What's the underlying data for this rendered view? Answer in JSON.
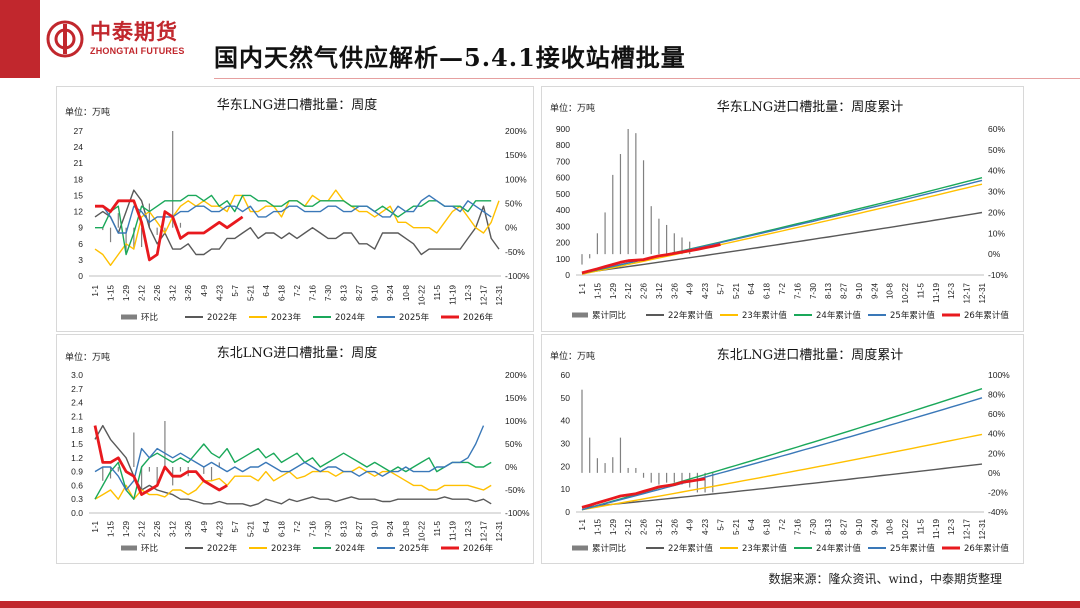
{
  "header": {
    "brand_cn": "中泰期货",
    "brand_en": "ZHONGTAI FUTURES",
    "title": "国内天然气供应解析—5.4.1接收站槽批量"
  },
  "footer": {
    "source": "数据来源：隆众资讯、wind，中泰期货整理"
  },
  "colors": {
    "brand": "#c1272d",
    "bar": "#808080",
    "s2022": "#595959",
    "s2023": "#ffc000",
    "s2024": "#1aa85a",
    "s2025": "#3a78b8",
    "s2026": "#e8191e"
  },
  "week_ticks": [
    "1-1",
    "1-15",
    "1-29",
    "2-12",
    "2-26",
    "3-12",
    "3-26",
    "4-9",
    "4-23",
    "5-7",
    "5-21",
    "6-4",
    "6-18",
    "7-2",
    "7-16",
    "7-30",
    "8-13",
    "8-27",
    "9-10",
    "9-24",
    "10-8",
    "10-22",
    "11-5",
    "11-19",
    "12-3",
    "12-17",
    "12-31"
  ],
  "chart_data": [
    {
      "id": "east_weekly",
      "type": "line",
      "title": "华东LNG进口槽批量：周度",
      "unit": "单位：万吨",
      "yticks": [
        "27",
        "24",
        "21",
        "18",
        "15",
        "12",
        "9",
        "6",
        "3",
        "0"
      ],
      "ylim": [
        0,
        27
      ],
      "y2ticks": [
        "200%",
        "150%",
        "100%",
        "50%",
        "0%",
        "-50%",
        "-100%"
      ],
      "y2lim": [
        -100,
        200
      ],
      "legend": [
        "环比",
        "2022年",
        "2023年",
        "2024年",
        "2025年",
        "2026年"
      ],
      "bars": [
        null,
        -5,
        -30,
        30,
        -55,
        -45,
        -40,
        50,
        -15,
        -12,
        200,
        10
      ],
      "series": [
        {
          "name": "2022年",
          "values": [
            11,
            12,
            11,
            8,
            12,
            16,
            14,
            9,
            6,
            8,
            5,
            5,
            6,
            4,
            4,
            5,
            5,
            7,
            7,
            8,
            9,
            7,
            8,
            8,
            7,
            8,
            7,
            8,
            9,
            8,
            7,
            7,
            8,
            8,
            6,
            6,
            5,
            8,
            8,
            8,
            7,
            6,
            4,
            5,
            5,
            5,
            5,
            5,
            7,
            9,
            13,
            7,
            5
          ]
        },
        {
          "name": "2023年",
          "values": [
            5,
            4,
            2,
            4,
            6,
            5,
            11,
            12,
            10,
            8,
            11,
            13,
            14,
            13,
            14,
            13,
            13,
            12,
            15,
            15,
            12,
            12,
            13,
            13,
            11,
            14,
            14,
            13,
            15,
            14,
            14,
            16,
            14,
            13,
            12,
            12,
            11,
            12,
            13,
            10,
            10,
            9,
            9,
            9,
            8,
            10,
            12,
            13,
            11,
            9,
            8,
            10,
            14
          ]
        },
        {
          "name": "2024年",
          "values": [
            9,
            9,
            12,
            13,
            4,
            8,
            13,
            12,
            13,
            14,
            14,
            14,
            15,
            15,
            14,
            15,
            13,
            14,
            12,
            15,
            15,
            14,
            14,
            13,
            13,
            14,
            14,
            13,
            13,
            14,
            14,
            14,
            14,
            13,
            13,
            13,
            12,
            13,
            12,
            11,
            12,
            13,
            13,
            14,
            14,
            13,
            13,
            13,
            12,
            14,
            14,
            14
          ]
        },
        {
          "name": "2025年",
          "values": [
            13,
            13,
            11,
            8,
            8,
            13,
            12,
            10,
            11,
            11,
            11,
            12,
            12,
            13,
            13,
            12,
            12,
            13,
            13,
            12,
            13,
            11,
            11,
            12,
            12,
            13,
            13,
            12,
            12,
            12,
            13,
            13,
            12,
            12,
            13,
            13,
            12,
            11,
            11,
            13,
            12,
            12,
            14,
            15,
            14,
            13,
            13,
            12,
            14,
            13,
            12,
            11
          ]
        },
        {
          "name": "2026年",
          "values": [
            13,
            13,
            12,
            14,
            14,
            14,
            10,
            3,
            4,
            12,
            11,
            7,
            8,
            8,
            8,
            9,
            10,
            9,
            10,
            11
          ]
        }
      ]
    },
    {
      "id": "east_cumulative",
      "type": "line",
      "title": "华东LNG进口槽批量：周度累计",
      "unit": "单位：万吨",
      "yticks": [
        "900",
        "800",
        "700",
        "600",
        "500",
        "400",
        "300",
        "200",
        "100",
        "0"
      ],
      "ylim": [
        0,
        900
      ],
      "y2ticks": [
        "60%",
        "50%",
        "40%",
        "30%",
        "20%",
        "10%",
        "0%",
        "-10%"
      ],
      "y2lim": [
        -10,
        60
      ],
      "legend": [
        "累计同比",
        "22年累计值",
        "23年累计值",
        "24年累计值",
        "25年累计值",
        "26年累计值"
      ],
      "bars": [
        -5,
        -2,
        10,
        20,
        38,
        48,
        60,
        58,
        45,
        23,
        17,
        14,
        10,
        8,
        6
      ],
      "series": [
        {
          "name": "22年累计值",
          "start": 12,
          "end": 385
        },
        {
          "name": "23年累计值",
          "start": 5,
          "end": 560
        },
        {
          "name": "24年累计值",
          "start": 10,
          "end": 600
        },
        {
          "name": "25年累计值",
          "start": 13,
          "end": 583
        },
        {
          "name": "26年累计值",
          "values": [
            13,
            26,
            38,
            52,
            65,
            78,
            88,
            91,
            95,
            107,
            118,
            125,
            133,
            141,
            149,
            158,
            168,
            177,
            188
          ]
        }
      ]
    },
    {
      "id": "northeast_weekly",
      "type": "line",
      "title": "东北LNG进口槽批量：周度",
      "unit": "单位：万吨",
      "yticks": [
        "3.0",
        "2.7",
        "2.4",
        "2.1",
        "1.8",
        "1.5",
        "1.2",
        "0.9",
        "0.6",
        "0.3",
        "0.0"
      ],
      "ylim": [
        0,
        3.0
      ],
      "y2ticks": [
        "200%",
        "150%",
        "100%",
        "50%",
        "0%",
        "-50%",
        "-100%"
      ],
      "y2lim": [
        -100,
        200
      ],
      "legend": [
        "环比",
        "2022年",
        "2023年",
        "2024年",
        "2025年",
        "2026年"
      ],
      "bars": [
        null,
        -30,
        -25,
        -10,
        0,
        75,
        -50,
        -10,
        -35,
        100,
        -40,
        -10,
        -20,
        0,
        -15,
        -30,
        10
      ],
      "series": [
        {
          "name": "2022年",
          "values": [
            1.6,
            1.9,
            1.6,
            1.4,
            1.2,
            0.8,
            0.5,
            0.6,
            0.5,
            0.45,
            0.4,
            0.3,
            0.3,
            0.25,
            0.2,
            0.2,
            0.25,
            0.2,
            0.2,
            0.2,
            0.15,
            0.2,
            0.3,
            0.25,
            0.2,
            0.3,
            0.25,
            0.3,
            0.35,
            0.3,
            0.3,
            0.25,
            0.3,
            0.35,
            0.3,
            0.3,
            0.3,
            0.25,
            0.25,
            0.3,
            0.3,
            0.3,
            0.3,
            0.3,
            0.3,
            0.35,
            0.3,
            0.3,
            0.3,
            0.25,
            0.3,
            0.2
          ]
        },
        {
          "name": "2023年",
          "values": [
            0.3,
            0.4,
            0.5,
            0.3,
            0.6,
            0.3,
            0.5,
            0.4,
            0.4,
            0.35,
            0.5,
            0.5,
            0.4,
            0.5,
            0.7,
            0.7,
            0.75,
            0.6,
            0.8,
            0.8,
            0.8,
            0.7,
            0.9,
            0.7,
            0.8,
            0.9,
            0.75,
            0.8,
            0.9,
            0.9,
            0.9,
            0.8,
            0.9,
            0.9,
            1.0,
            0.9,
            0.8,
            0.9,
            0.9,
            0.8,
            0.7,
            0.6,
            0.6,
            0.5,
            0.5,
            0.6,
            0.6,
            0.6,
            0.6,
            0.55,
            0.5,
            0.6
          ]
        },
        {
          "name": "2024年",
          "values": [
            0.3,
            0.6,
            0.9,
            1.1,
            0.5,
            0.3,
            1.0,
            1.2,
            1.3,
            1.2,
            1.1,
            1.2,
            1.1,
            1.3,
            1.5,
            1.3,
            1.2,
            1.4,
            1.1,
            1.2,
            1.3,
            1.4,
            1.2,
            1.3,
            1.1,
            1.2,
            1.3,
            1.1,
            1.2,
            1.0,
            1.1,
            1.2,
            1.3,
            1.2,
            1.1,
            1.0,
            1.1,
            1.0,
            0.9,
            1.0,
            0.9,
            1.0,
            1.1,
            1.2,
            0.9,
            1.0,
            1.1,
            1.1,
            1.1,
            1.0,
            1.0,
            1.1
          ]
        },
        {
          "name": "2025年",
          "values": [
            0.9,
            1.0,
            1.0,
            0.8,
            0.5,
            0.7,
            1.4,
            1.2,
            1.4,
            1.3,
            1.2,
            1.3,
            1.2,
            1.1,
            1.0,
            1.1,
            1.0,
            0.9,
            1.0,
            0.9,
            1.0,
            1.0,
            1.1,
            1.0,
            0.9,
            0.9,
            1.0,
            1.1,
            1.0,
            0.9,
            1.0,
            1.0,
            0.9,
            0.9,
            0.8,
            0.9,
            0.9,
            0.8,
            0.9,
            0.9,
            1.0,
            0.9,
            0.9,
            0.9,
            1.0,
            1.0,
            1.1,
            1.1,
            1.2,
            1.5,
            1.9
          ]
        },
        {
          "name": "2026年",
          "values": [
            1.9,
            1.1,
            1.1,
            1.2,
            0.9,
            0.8,
            0.4,
            0.5,
            0.6,
            1.0,
            0.8,
            0.8,
            0.9,
            0.9,
            0.7,
            0.6,
            0.5,
            0.6
          ]
        }
      ]
    },
    {
      "id": "northeast_cumulative",
      "type": "line",
      "title": "东北LNG进口槽批量：周度累计",
      "unit": "单位：万吨",
      "yticks": [
        "60",
        "50",
        "40",
        "30",
        "20",
        "10",
        "0"
      ],
      "ylim": [
        0,
        60
      ],
      "y2ticks": [
        "100%",
        "80%",
        "60%",
        "40%",
        "20%",
        "0%",
        "-20%",
        "-40%"
      ],
      "y2lim": [
        -40,
        100
      ],
      "legend": [
        "累计同比",
        "22年累计值",
        "23年累计值",
        "24年累计值",
        "25年累计值",
        "26年累计值"
      ],
      "bars": [
        85,
        36,
        15,
        10,
        16,
        36,
        5,
        5,
        -5,
        -10,
        -12,
        -10,
        -10,
        -12,
        -15,
        -20,
        -20,
        -20
      ],
      "series": [
        {
          "name": "22年累计值",
          "start": 2,
          "end": 21
        },
        {
          "name": "23年累计值",
          "start": 1,
          "end": 34
        },
        {
          "name": "24年累计值",
          "start": 1,
          "end": 54
        },
        {
          "name": "25年累计值",
          "start": 1,
          "end": 50
        },
        {
          "name": "26年累计值",
          "values": [
            2,
            3,
            4,
            5,
            6,
            7,
            7.5,
            8,
            9,
            10,
            11,
            11.5,
            12,
            13,
            13.5,
            14,
            14.5
          ]
        }
      ]
    }
  ]
}
